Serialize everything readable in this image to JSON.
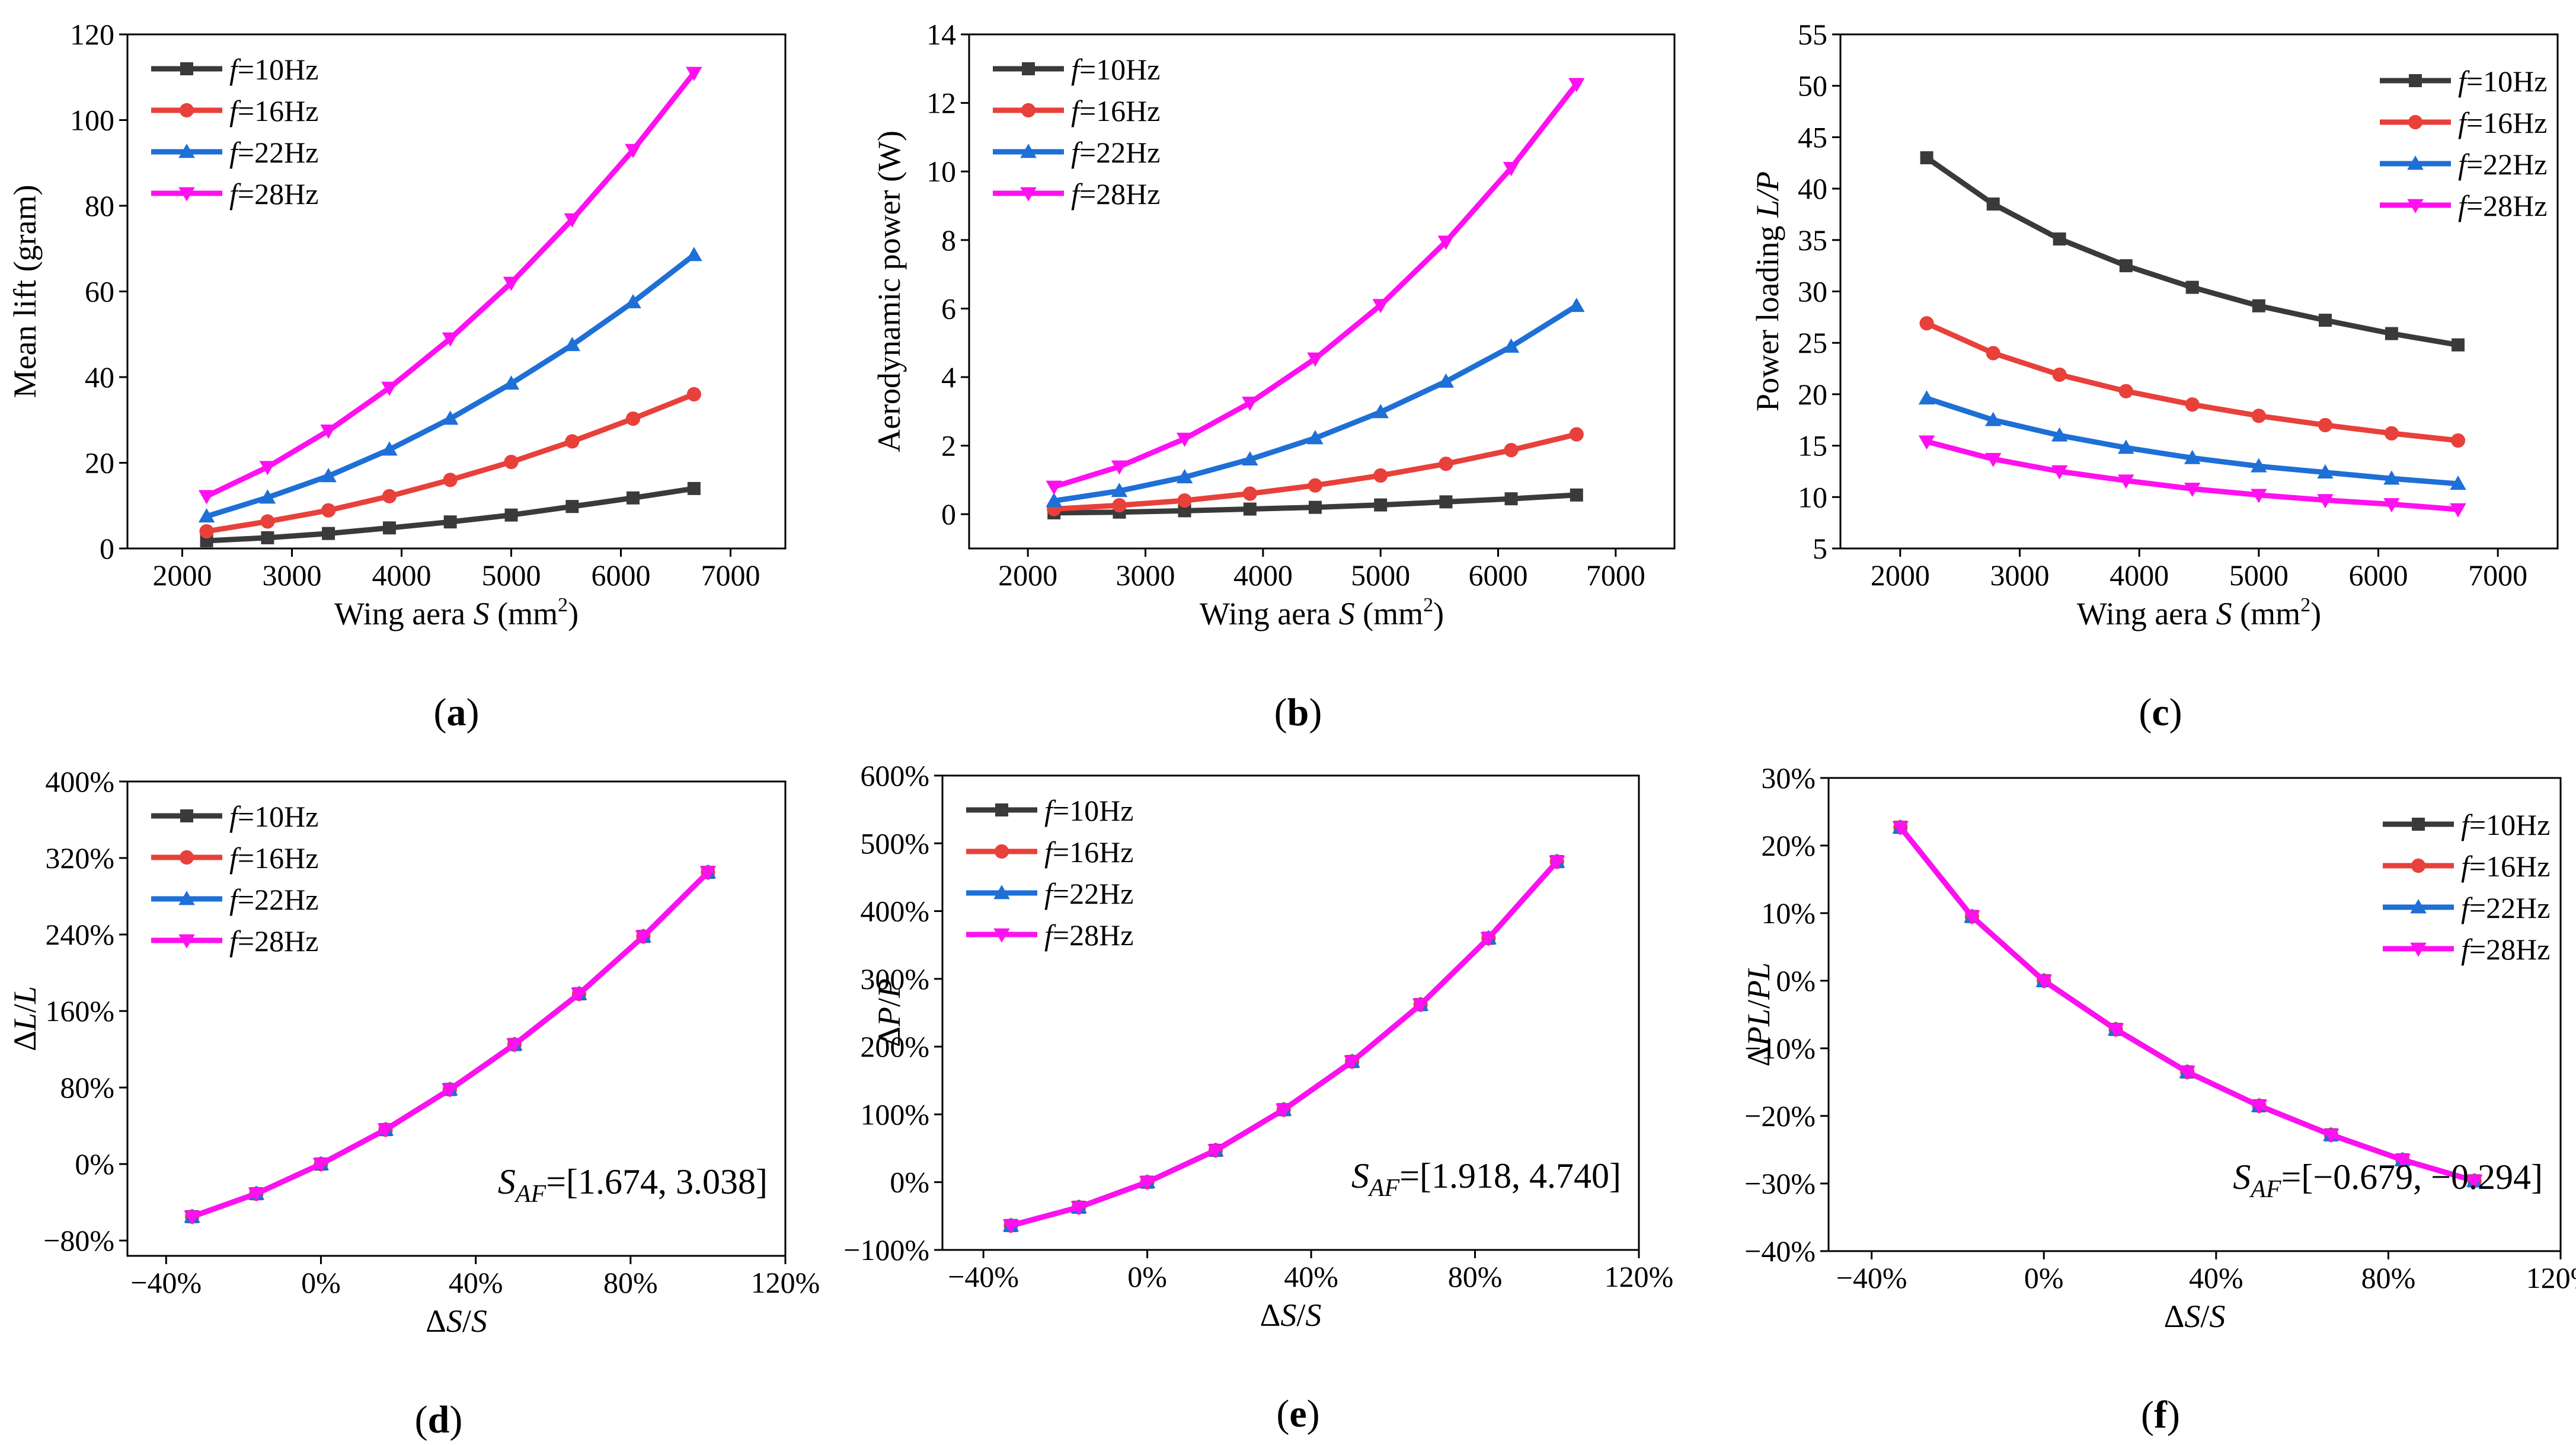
{
  "series_colors": [
    "#3a3a3a",
    "#e8403a",
    "#1e6fd6",
    "#ff10f0"
  ],
  "legend_labels": [
    {
      "f": "f",
      "rest": "=10Hz"
    },
    {
      "f": "f",
      "rest": "=16Hz"
    },
    {
      "f": "f",
      "rest": "=22Hz"
    },
    {
      "f": "f",
      "rest": "=28Hz"
    }
  ],
  "chart_data": [
    {
      "id": "a",
      "type": "line",
      "panel_label": {
        "open": "(",
        "letter": "a",
        "close": ")"
      },
      "ylabel": "Mean lift (gram)",
      "xlabel": {
        "pre": "Wing aera ",
        "var": "S",
        "post": " (mm",
        "sup": "2",
        "end": ")"
      },
      "xlim": [
        1500,
        7500
      ],
      "ylim": [
        0,
        120
      ],
      "xticks": [
        2000,
        3000,
        4000,
        5000,
        6000,
        7000
      ],
      "xtick_labels": [
        "2000",
        "3000",
        "4000",
        "5000",
        "6000",
        "7000"
      ],
      "yticks": [
        0,
        20,
        40,
        60,
        80,
        100,
        120
      ],
      "ytick_labels": [
        "0",
        "20",
        "40",
        "60",
        "80",
        "100",
        "120"
      ],
      "legend_position": "top-left",
      "x": [
        2222,
        2778,
        3333,
        3889,
        4444,
        5000,
        5556,
        6111,
        6667
      ],
      "series": [
        {
          "name": "f=10Hz",
          "values": [
            1.8,
            2.5,
            3.5,
            4.8,
            6.2,
            7.8,
            9.8,
            11.8,
            14.0
          ]
        },
        {
          "name": "f=16Hz",
          "values": [
            4.0,
            6.3,
            8.9,
            12.2,
            16.0,
            20.2,
            25.0,
            30.3,
            36.0
          ]
        },
        {
          "name": "f=22Hz",
          "values": [
            7.5,
            11.9,
            16.9,
            23.1,
            30.3,
            38.5,
            47.5,
            57.5,
            68.5
          ]
        },
        {
          "name": "f=28Hz",
          "values": [
            12.2,
            19.0,
            27.5,
            37.5,
            49.0,
            62.0,
            76.8,
            93.0,
            111.0
          ]
        }
      ]
    },
    {
      "id": "b",
      "type": "line",
      "panel_label": {
        "open": "(",
        "letter": "b",
        "close": ")"
      },
      "ylabel": "Aerodynamic power (W)",
      "xlabel": {
        "pre": "Wing aera ",
        "var": "S",
        "post": " (mm",
        "sup": "2",
        "end": ")"
      },
      "xlim": [
        1500,
        7500
      ],
      "ylim": [
        -1,
        14
      ],
      "xticks": [
        2000,
        3000,
        4000,
        5000,
        6000,
        7000
      ],
      "xtick_labels": [
        "2000",
        "3000",
        "4000",
        "5000",
        "6000",
        "7000"
      ],
      "yticks": [
        0,
        2,
        4,
        6,
        8,
        10,
        12,
        14
      ],
      "ytick_labels": [
        "0",
        "2",
        "4",
        "6",
        "8",
        "10",
        "12",
        "14"
      ],
      "legend_position": "top-left",
      "x": [
        2222,
        2778,
        3333,
        3889,
        4444,
        5000,
        5556,
        6111,
        6667
      ],
      "series": [
        {
          "name": "f=10Hz",
          "values": [
            0.04,
            0.06,
            0.1,
            0.15,
            0.2,
            0.27,
            0.36,
            0.45,
            0.56
          ]
        },
        {
          "name": "f=16Hz",
          "values": [
            0.15,
            0.26,
            0.4,
            0.6,
            0.84,
            1.13,
            1.47,
            1.87,
            2.33
          ]
        },
        {
          "name": "f=22Hz",
          "values": [
            0.39,
            0.68,
            1.08,
            1.6,
            2.22,
            2.98,
            3.87,
            4.89,
            6.08
          ]
        },
        {
          "name": "f=28Hz",
          "values": [
            0.8,
            1.39,
            2.2,
            3.25,
            4.54,
            6.1,
            7.95,
            10.1,
            12.55
          ]
        }
      ]
    },
    {
      "id": "c",
      "type": "line",
      "panel_label": {
        "open": "(",
        "letter": "c",
        "close": ")"
      },
      "ylabel": {
        "pre": "Power loading ",
        "var": "L/P"
      },
      "xlabel": {
        "pre": "Wing aera ",
        "var": "S",
        "post": " (mm",
        "sup": "2",
        "end": ")"
      },
      "xlim": [
        1500,
        7500
      ],
      "ylim": [
        5,
        55
      ],
      "xticks": [
        2000,
        3000,
        4000,
        5000,
        6000,
        7000
      ],
      "xtick_labels": [
        "2000",
        "3000",
        "4000",
        "5000",
        "6000",
        "7000"
      ],
      "yticks": [
        5,
        10,
        15,
        20,
        25,
        30,
        35,
        40,
        45,
        50,
        55
      ],
      "ytick_labels": [
        "5",
        "10",
        "15",
        "20",
        "25",
        "30",
        "35",
        "40",
        "45",
        "50",
        "55"
      ],
      "legend_position": "top-right",
      "x": [
        2222,
        2778,
        3333,
        3889,
        4444,
        5000,
        5556,
        6111,
        6667
      ],
      "series": [
        {
          "name": "f=10Hz",
          "values": [
            43.0,
            38.5,
            35.1,
            32.5,
            30.4,
            28.6,
            27.2,
            25.9,
            24.8
          ]
        },
        {
          "name": "f=16Hz",
          "values": [
            26.9,
            24.0,
            21.9,
            20.3,
            19.0,
            17.9,
            17.0,
            16.2,
            15.5
          ]
        },
        {
          "name": "f=22Hz",
          "values": [
            19.6,
            17.5,
            16.0,
            14.8,
            13.8,
            13.0,
            12.4,
            11.8,
            11.3
          ]
        },
        {
          "name": "f=28Hz",
          "values": [
            15.4,
            13.7,
            12.5,
            11.6,
            10.8,
            10.2,
            9.7,
            9.3,
            8.8
          ]
        }
      ]
    },
    {
      "id": "d",
      "type": "line",
      "panel_label": {
        "open": "(",
        "letter": "d",
        "close": ")"
      },
      "ylabel": {
        "delta": "Δ",
        "a": "L",
        "slash": "/",
        "b": "L"
      },
      "xlabel": {
        "delta": "Δ",
        "a": "S",
        "slash": "/",
        "b": "S"
      },
      "xlim": [
        -0.5,
        1.2
      ],
      "ylim": [
        -0.96,
        4.0
      ],
      "xticks": [
        -0.4,
        0.0,
        0.4,
        0.8,
        1.2
      ],
      "xtick_labels": [
        "−40%",
        "0%",
        "40%",
        "80%",
        "120%"
      ],
      "yticks": [
        -0.8,
        0.0,
        0.8,
        1.6,
        2.4,
        3.2,
        4.0
      ],
      "ytick_labels": [
        "−80%",
        "0%",
        "80%",
        "160%",
        "240%",
        "320%",
        "400%"
      ],
      "legend_position": "top-left",
      "annotation": {
        "pre": "S",
        "sub": "AF",
        "post": "=[1.674, 3.038]"
      },
      "x": [
        -0.333,
        -0.167,
        0.0,
        0.167,
        0.333,
        0.5,
        0.667,
        0.833,
        1.0
      ],
      "series": [
        {
          "name": "f=10Hz",
          "values": [
            -0.55,
            -0.31,
            0.0,
            0.36,
            0.78,
            1.25,
            1.78,
            2.38,
            3.05
          ]
        },
        {
          "name": "f=16Hz",
          "values": [
            -0.55,
            -0.31,
            0.0,
            0.36,
            0.78,
            1.25,
            1.78,
            2.38,
            3.05
          ]
        },
        {
          "name": "f=22Hz",
          "values": [
            -0.55,
            -0.31,
            0.0,
            0.36,
            0.78,
            1.25,
            1.78,
            2.38,
            3.05
          ]
        },
        {
          "name": "f=28Hz",
          "values": [
            -0.55,
            -0.31,
            0.0,
            0.36,
            0.78,
            1.25,
            1.78,
            2.38,
            3.05
          ]
        }
      ]
    },
    {
      "id": "e",
      "type": "line",
      "panel_label": {
        "open": "(",
        "letter": "e",
        "close": ")"
      },
      "ylabel": {
        "delta": "Δ",
        "a": "P",
        "slash": "/",
        "b": "P"
      },
      "xlabel": {
        "delta": "Δ",
        "a": "S",
        "slash": "/",
        "b": "S"
      },
      "xlim": [
        -0.5,
        1.2
      ],
      "ylim": [
        -1.0,
        6.0
      ],
      "xticks": [
        -0.4,
        0.0,
        0.4,
        0.8,
        1.2
      ],
      "xtick_labels": [
        "−40%",
        "0%",
        "40%",
        "80%",
        "120%"
      ],
      "yticks": [
        -1.0,
        0.0,
        1.0,
        2.0,
        3.0,
        4.0,
        5.0,
        6.0
      ],
      "ytick_labels": [
        "−100%",
        "0%",
        "100%",
        "200%",
        "300%",
        "400%",
        "500%",
        "600%"
      ],
      "legend_position": "top-left",
      "annotation": {
        "pre": "S",
        "sub": "AF",
        "post": "=[1.918, 4.740]"
      },
      "x": [
        -0.333,
        -0.167,
        0.0,
        0.167,
        0.333,
        0.5,
        0.667,
        0.833,
        1.0
      ],
      "series": [
        {
          "name": "f=10Hz",
          "values": [
            -0.64,
            -0.37,
            0.0,
            0.47,
            1.07,
            1.78,
            2.62,
            3.6,
            4.73
          ]
        },
        {
          "name": "f=16Hz",
          "values": [
            -0.64,
            -0.37,
            0.0,
            0.47,
            1.07,
            1.78,
            2.62,
            3.6,
            4.73
          ]
        },
        {
          "name": "f=22Hz",
          "values": [
            -0.64,
            -0.37,
            0.0,
            0.47,
            1.07,
            1.78,
            2.62,
            3.6,
            4.73
          ]
        },
        {
          "name": "f=28Hz",
          "values": [
            -0.64,
            -0.37,
            0.0,
            0.47,
            1.07,
            1.78,
            2.62,
            3.6,
            4.73
          ]
        }
      ]
    },
    {
      "id": "f",
      "type": "line",
      "panel_label": {
        "open": "(",
        "letter": "f",
        "close": ")"
      },
      "ylabel": {
        "delta": "Δ",
        "a": "PL",
        "slash": "/",
        "b": "PL"
      },
      "xlabel": {
        "delta": "Δ",
        "a": "S",
        "slash": "/",
        "b": "S"
      },
      "xlim": [
        -0.5,
        1.2
      ],
      "ylim": [
        -0.4,
        0.3
      ],
      "xticks": [
        -0.4,
        0.0,
        0.4,
        0.8,
        1.2
      ],
      "xtick_labels": [
        "−40%",
        "0%",
        "40%",
        "80%",
        "120%"
      ],
      "yticks": [
        -0.4,
        -0.3,
        -0.2,
        -0.1,
        0.0,
        0.1,
        0.2,
        0.3
      ],
      "ytick_labels": [
        "−40%",
        "−30%",
        "−20%",
        "−10%",
        "0%",
        "10%",
        "20%",
        "30%"
      ],
      "legend_position": "top-right",
      "annotation": {
        "pre": "S",
        "sub": "AF",
        "post": "=[−0.679, −0.294]"
      },
      "x": [
        -0.333,
        -0.167,
        0.0,
        0.167,
        0.333,
        0.5,
        0.667,
        0.833,
        1.0
      ],
      "series": [
        {
          "name": "f=10Hz",
          "values": [
            0.227,
            0.095,
            0.0,
            -0.072,
            -0.135,
            -0.185,
            -0.228,
            -0.265,
            -0.296
          ]
        },
        {
          "name": "f=16Hz",
          "values": [
            0.227,
            0.095,
            0.0,
            -0.072,
            -0.135,
            -0.185,
            -0.228,
            -0.265,
            -0.296
          ]
        },
        {
          "name": "f=22Hz",
          "values": [
            0.227,
            0.095,
            0.0,
            -0.072,
            -0.135,
            -0.185,
            -0.228,
            -0.265,
            -0.296
          ]
        },
        {
          "name": "f=28Hz",
          "values": [
            0.227,
            0.095,
            0.0,
            -0.072,
            -0.135,
            -0.185,
            -0.228,
            -0.265,
            -0.296
          ]
        }
      ]
    }
  ]
}
